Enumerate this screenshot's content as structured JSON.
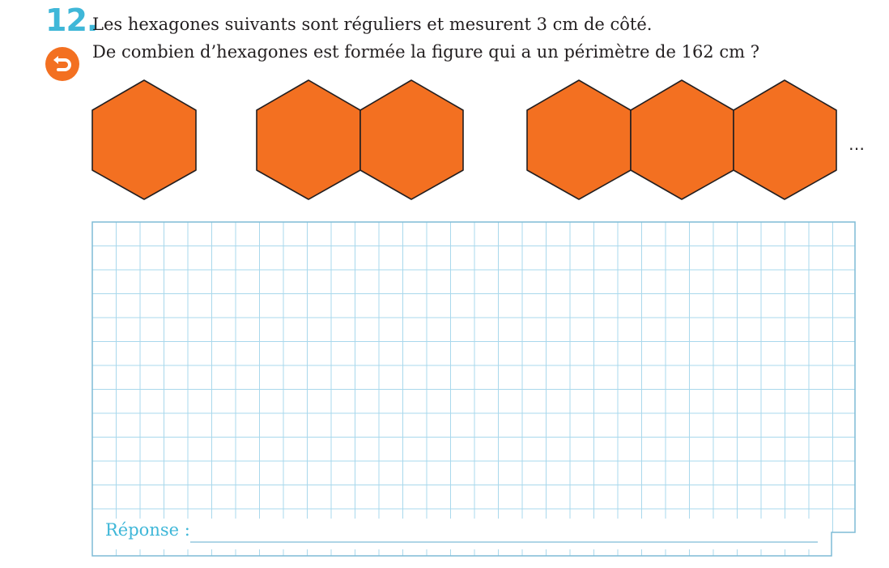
{
  "exercise": {
    "number": "12",
    "dot": ".",
    "back_icon": "undo-arrow-icon",
    "accent_color": "#3fb7d8",
    "hex_color": "#f37021"
  },
  "question": {
    "line1": "Les hexagones suivants sont réguliers et mesurent 3 cm de côté.",
    "line2": "De combien d’hexagones est formée la figure qui a un périmètre de 162 cm ?"
  },
  "figures": {
    "groups": [
      1,
      2,
      3
    ],
    "continuation": "…"
  },
  "answer": {
    "label": "Réponse :"
  }
}
